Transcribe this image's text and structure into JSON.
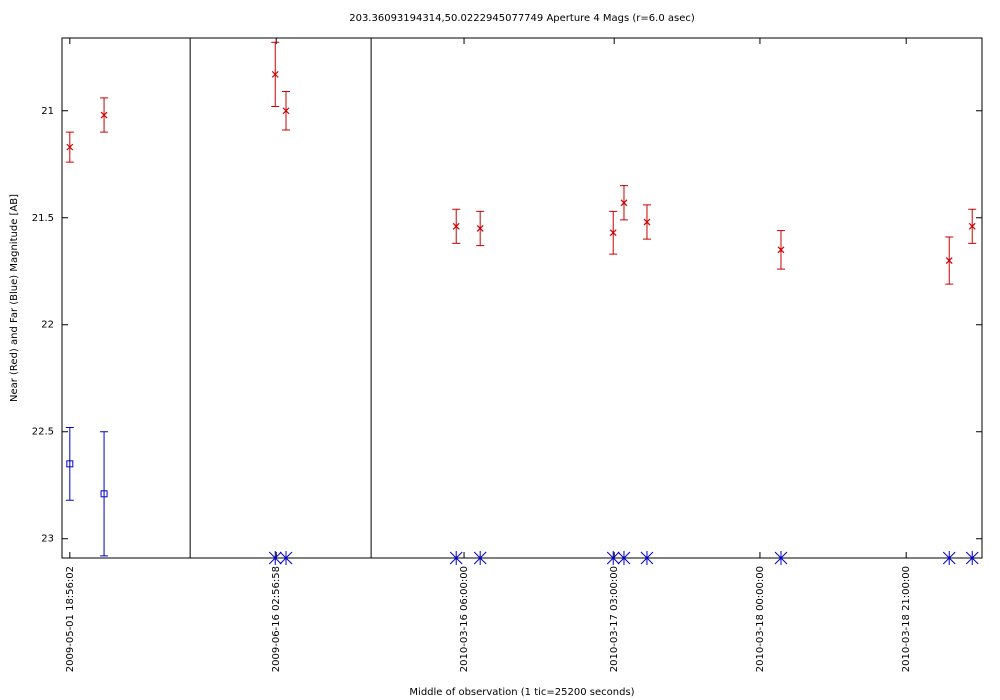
{
  "chart_data": {
    "type": "scatter",
    "title": "203.36093194314,50.0222945077749   Aperture 4 Mags (r=6.0 asec)",
    "x_label": "Middle of observation (1 tic=25200 seconds)",
    "y_label": "Near (Red) and Far (Blue) Magnitude [AB]",
    "xlim": [
      0,
      18.81
    ],
    "ylim": [
      20.66,
      23.09
    ],
    "y_inverted": true,
    "xticks": [
      {
        "value": 0.16,
        "label": "2009-05-01 18:56:02"
      },
      {
        "value": 4.38,
        "label": "2009-06-16 02:56:58"
      },
      {
        "value": 8.22,
        "label": "2010-03-16 06:00:00"
      },
      {
        "value": 11.29,
        "label": "2010-03-17 03:00:00"
      },
      {
        "value": 14.27,
        "label": "2010-03-18 00:00:00"
      },
      {
        "value": 17.26,
        "label": "2010-03-18 21:00:00"
      }
    ],
    "yticks": [
      21,
      21.5,
      22,
      22.5,
      23
    ],
    "breaks": [
      2.62,
      6.32
    ],
    "series": [
      {
        "color": "#cc0000",
        "marker": "x",
        "x": [
          0.16,
          0.86,
          4.36,
          4.58,
          8.06,
          8.55,
          11.27,
          11.49,
          11.96,
          14.7,
          18.14,
          18.61
        ],
        "values": [
          21.17,
          21.02,
          20.83,
          21.0,
          21.54,
          21.55,
          21.57,
          21.43,
          21.52,
          21.65,
          21.7,
          21.54
        ],
        "errors": [
          0.07,
          0.08,
          0.15,
          0.09,
          0.08,
          0.08,
          0.1,
          0.08,
          0.08,
          0.09,
          0.11,
          0.08
        ]
      },
      {
        "color": "#0000cc",
        "marker": "square",
        "x": [
          0.16,
          0.86
        ],
        "values": [
          22.65,
          22.79
        ],
        "errors": [
          0.17,
          0.29
        ]
      },
      {
        "color": "#0000cc",
        "marker": "asterisk",
        "x": [
          4.36,
          4.58,
          8.06,
          8.55,
          11.27,
          11.49,
          11.96,
          14.7,
          18.14,
          18.61
        ],
        "values": [
          23.09,
          23.09,
          23.09,
          23.09,
          23.09,
          23.09,
          23.09,
          23.09,
          23.09,
          23.09
        ]
      }
    ]
  }
}
